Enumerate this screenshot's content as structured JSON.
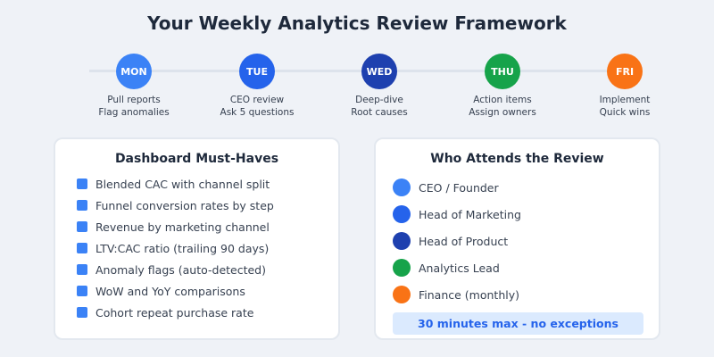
{
  "title": "Your Weekly Analytics Review Framework",
  "days": [
    {
      "abbr": "MON",
      "line1": "Pull reports",
      "line2": "Flag anomalies",
      "color": "#3b82f6"
    },
    {
      "abbr": "TUE",
      "line1": "CEO review",
      "line2": "Ask 5 questions",
      "color": "#2563eb"
    },
    {
      "abbr": "WED",
      "line1": "Deep-dive",
      "line2": "Root causes",
      "color": "#1e40af"
    },
    {
      "abbr": "THU",
      "line1": "Action items",
      "line2": "Assign owners",
      "color": "#16a34a"
    },
    {
      "abbr": "FRI",
      "line1": "Implement",
      "line2": "Quick wins",
      "color": "#f97316"
    }
  ],
  "dashboard": {
    "title": "Dashboard Must-Haves",
    "accent": "#3b82f6",
    "items": [
      "Blended CAC with channel split",
      "Funnel conversion rates by step",
      "Revenue by marketing channel",
      "LTV:CAC ratio (trailing 90 days)",
      "Anomaly flags (auto-detected)",
      "WoW and YoY comparisons",
      "Cohort repeat purchase rate"
    ]
  },
  "attendees": {
    "title": "Who Attends the Review",
    "items": [
      {
        "label": "CEO / Founder",
        "color": "#3b82f6"
      },
      {
        "label": "Head of Marketing",
        "color": "#2563eb"
      },
      {
        "label": "Head of Product",
        "color": "#1e40af"
      },
      {
        "label": "Analytics Lead",
        "color": "#16a34a"
      },
      {
        "label": "Finance (monthly)",
        "color": "#f97316"
      }
    ],
    "note": "30 minutes max - no exceptions"
  }
}
